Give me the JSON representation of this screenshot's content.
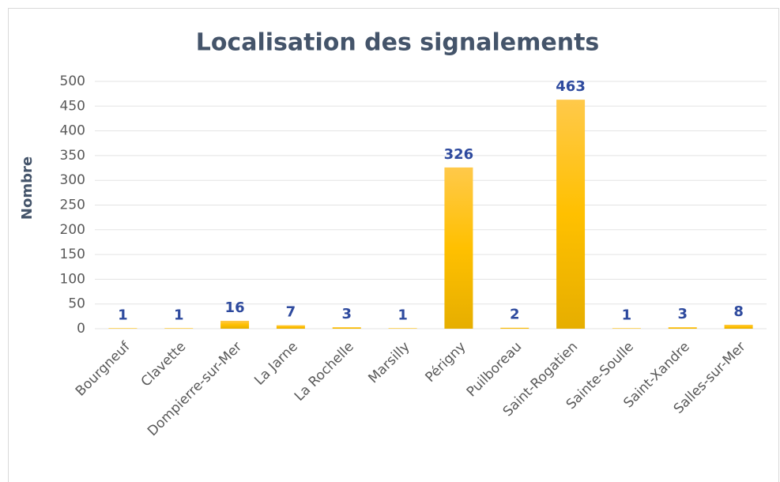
{
  "chart_data": {
    "type": "bar",
    "title": "Localisation des signalements",
    "y_label": "Nombre",
    "categories": [
      "Bourgneuf",
      "Clavette",
      "Dompierre-sur-Mer",
      "La Jarne",
      "La Rochelle",
      "Marsilly",
      "Périgny",
      "Puilboreau",
      "Saint-Rogatien",
      "Sainte-Soulle",
      "Saint-Xandre",
      "Salles-sur-Mer"
    ],
    "values": [
      1,
      1,
      16,
      7,
      3,
      1,
      326,
      2,
      463,
      1,
      3,
      8
    ],
    "color": "#ffc000",
    "ylim": [
      0,
      500
    ],
    "yticks": [
      0,
      50,
      100,
      150,
      200,
      250,
      300,
      350,
      400,
      450,
      500
    ],
    "grid": true
  }
}
